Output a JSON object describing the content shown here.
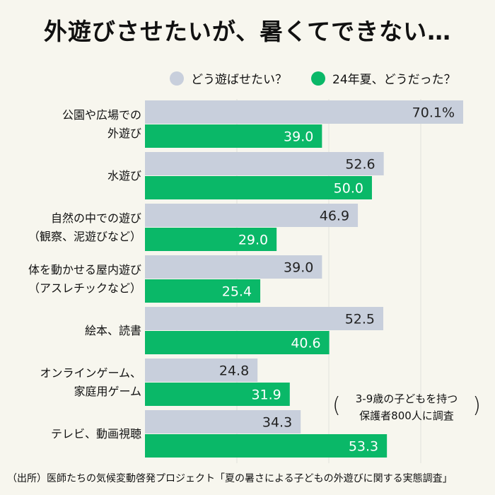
{
  "title": "外遊びさせたいが、暑くてできない…",
  "legend": {
    "series_a": "どう遊ばせたい？",
    "series_b": "24年夏、どうだった？"
  },
  "note": {
    "line1": "3-9歳の子どもを持つ",
    "line2": "保護者800人に調査"
  },
  "source": "（出所）医師たちの気候変動啓発プロジェクト「夏の暑さによる子どもの外遊びに関する実態調査」",
  "colors": {
    "series_a": "#c8cfdc",
    "series_b": "#0ab868",
    "background": "#f7f6ee"
  },
  "chart_data": {
    "type": "bar",
    "orientation": "horizontal",
    "categories": [
      [
        "公園や広場での",
        "外遊び"
      ],
      [
        "水遊び"
      ],
      [
        "自然の中での遊び",
        "（観察、泥遊びなど）"
      ],
      [
        "体を動かせる屋内遊び",
        "（アスレチックなど）"
      ],
      [
        "絵本、読書"
      ],
      [
        "オンラインゲーム、",
        "家庭用ゲーム"
      ],
      [
        "テレビ、動画視聴"
      ]
    ],
    "series": [
      {
        "name": "どう遊ばせたい？",
        "values": [
          70.1,
          52.6,
          46.9,
          39.0,
          52.5,
          24.8,
          34.3
        ],
        "labels": [
          "70.1%",
          "52.6",
          "46.9",
          "39.0",
          "52.5",
          "24.8",
          "34.3"
        ]
      },
      {
        "name": "24年夏、どうだった？",
        "values": [
          39.0,
          50.0,
          29.0,
          25.4,
          40.6,
          31.9,
          53.3
        ],
        "labels": [
          "39.0",
          "50.0",
          "29.0",
          "25.4",
          "40.6",
          "31.9",
          "53.3"
        ]
      }
    ],
    "xlim": [
      0,
      70.1
    ],
    "grid": true,
    "legend_position": "top"
  }
}
